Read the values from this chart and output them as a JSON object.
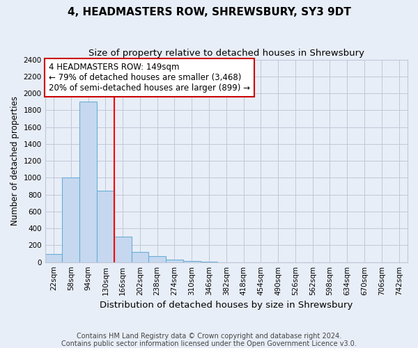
{
  "title": "4, HEADMASTERS ROW, SHREWSBURY, SY3 9DT",
  "subtitle": "Size of property relative to detached houses in Shrewsbury",
  "xlabel": "Distribution of detached houses by size in Shrewsbury",
  "ylabel": "Number of detached properties",
  "footer_line1": "Contains HM Land Registry data © Crown copyright and database right 2024.",
  "footer_line2": "Contains public sector information licensed under the Open Government Licence v3.0.",
  "bin_labels": [
    "22sqm",
    "58sqm",
    "94sqm",
    "130sqm",
    "166sqm",
    "202sqm",
    "238sqm",
    "274sqm",
    "310sqm",
    "346sqm",
    "382sqm",
    "418sqm",
    "454sqm",
    "490sqm",
    "526sqm",
    "562sqm",
    "598sqm",
    "634sqm",
    "670sqm",
    "706sqm",
    "742sqm"
  ],
  "bar_heights": [
    100,
    1000,
    1900,
    850,
    300,
    120,
    70,
    30,
    10,
    3,
    1,
    0,
    0,
    0,
    0,
    0,
    0,
    0,
    0,
    0,
    0
  ],
  "bar_color": "#c5d8ef",
  "bar_edge_color": "#6baed6",
  "annotation_text": "4 HEADMASTERS ROW: 149sqm\n← 79% of detached houses are smaller (3,468)\n20% of semi-detached houses are larger (899) →",
  "annotation_box_color": "#ffffff",
  "annotation_box_edge_color": "#cc0000",
  "ylim": [
    0,
    2400
  ],
  "yticks": [
    0,
    200,
    400,
    600,
    800,
    1000,
    1200,
    1400,
    1600,
    1800,
    2000,
    2200,
    2400
  ],
  "bg_color": "#e8eef7",
  "plot_bg_color": "#e8eef7",
  "grid_color": "#c0c8d8",
  "title_fontsize": 11,
  "subtitle_fontsize": 9.5,
  "xlabel_fontsize": 9.5,
  "ylabel_fontsize": 8.5,
  "tick_fontsize": 7.5,
  "annotation_fontsize": 8.5,
  "footer_fontsize": 7
}
